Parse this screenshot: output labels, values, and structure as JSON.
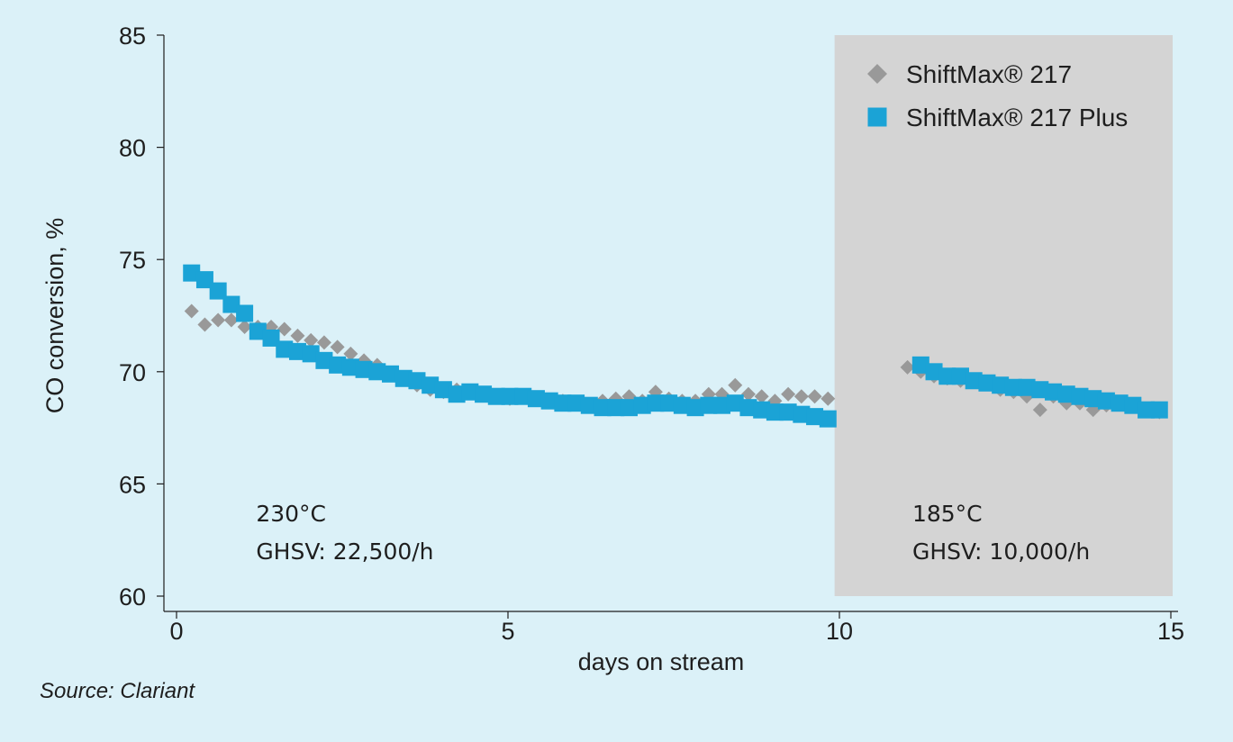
{
  "chart_data": {
    "type": "scatter",
    "title": "",
    "xlabel": "days on stream",
    "ylabel": "CO conversion, %",
    "xlim": [
      0,
      15
    ],
    "ylim": [
      60,
      85
    ],
    "xticks": [
      0,
      5,
      10,
      15
    ],
    "yticks": [
      60,
      65,
      70,
      75,
      80,
      85
    ],
    "grid": false,
    "legend_position": "top-right",
    "shaded_region": {
      "x_start": 9.9,
      "x_end": 15,
      "color": "#d4d4d4"
    },
    "annotations": [
      {
        "lines": [
          "230°C",
          "GHSV: 22,500/h"
        ],
        "x": 1.2,
        "y": 63.5
      },
      {
        "lines": [
          "185°C",
          "GHSV: 10,000/h"
        ],
        "x": 11.1,
        "y": 63.5
      }
    ],
    "series": [
      {
        "name": "ShiftMax® 217",
        "marker": "diamond",
        "color": "#999999",
        "x": [
          0.2,
          0.4,
          0.6,
          0.8,
          1.0,
          1.2,
          1.4,
          1.6,
          1.8,
          2.0,
          2.2,
          2.4,
          2.6,
          2.8,
          3.0,
          3.2,
          3.4,
          3.6,
          3.8,
          4.0,
          4.2,
          4.4,
          4.6,
          4.8,
          5.0,
          5.2,
          5.4,
          5.6,
          5.8,
          6.0,
          6.2,
          6.4,
          6.6,
          6.8,
          7.0,
          7.2,
          7.4,
          7.6,
          7.8,
          8.0,
          8.2,
          8.4,
          8.6,
          8.8,
          9.0,
          9.2,
          9.4,
          9.6,
          9.8,
          11.0,
          11.2,
          11.4,
          11.6,
          11.8,
          12.0,
          12.2,
          12.4,
          12.6,
          12.8,
          13.0,
          13.2,
          13.4,
          13.6,
          13.8,
          14.0,
          14.2,
          14.4,
          14.6,
          14.8
        ],
        "y": [
          72.7,
          72.1,
          72.3,
          72.3,
          72.0,
          72.0,
          72.0,
          71.9,
          71.6,
          71.4,
          71.3,
          71.1,
          70.8,
          70.5,
          70.3,
          69.9,
          69.7,
          69.4,
          69.2,
          69.1,
          69.2,
          69.1,
          69.0,
          68.9,
          68.8,
          68.9,
          68.8,
          68.7,
          68.7,
          68.6,
          68.5,
          68.7,
          68.8,
          68.9,
          68.7,
          69.1,
          68.8,
          68.7,
          68.7,
          69.0,
          69.0,
          69.4,
          69.0,
          68.9,
          68.7,
          69.0,
          68.9,
          68.9,
          68.8,
          70.2,
          70.0,
          69.8,
          69.7,
          69.6,
          69.6,
          69.5,
          69.2,
          69.1,
          68.9,
          68.3,
          68.9,
          68.6,
          68.6,
          68.3,
          68.5,
          68.6,
          68.5,
          68.3,
          68.2
        ]
      },
      {
        "name": "ShiftMax® 217 Plus",
        "marker": "square",
        "color": "#1ba3d6",
        "x": [
          0.2,
          0.4,
          0.6,
          0.8,
          1.0,
          1.2,
          1.4,
          1.6,
          1.8,
          2.0,
          2.2,
          2.4,
          2.6,
          2.8,
          3.0,
          3.2,
          3.4,
          3.6,
          3.8,
          4.0,
          4.2,
          4.4,
          4.6,
          4.8,
          5.0,
          5.2,
          5.4,
          5.6,
          5.8,
          6.0,
          6.2,
          6.4,
          6.6,
          6.8,
          7.0,
          7.2,
          7.4,
          7.6,
          7.8,
          8.0,
          8.2,
          8.4,
          8.6,
          8.8,
          9.0,
          9.2,
          9.4,
          9.6,
          9.8,
          11.2,
          11.4,
          11.6,
          11.8,
          12.0,
          12.2,
          12.4,
          12.6,
          12.8,
          13.0,
          13.2,
          13.4,
          13.6,
          13.8,
          14.0,
          14.2,
          14.4,
          14.6,
          14.8
        ],
        "y": [
          74.4,
          74.1,
          73.6,
          73.0,
          72.6,
          71.8,
          71.5,
          71.0,
          70.9,
          70.8,
          70.5,
          70.3,
          70.2,
          70.1,
          70.0,
          69.9,
          69.7,
          69.6,
          69.4,
          69.2,
          69.0,
          69.1,
          69.0,
          68.9,
          68.9,
          68.9,
          68.8,
          68.7,
          68.6,
          68.6,
          68.5,
          68.4,
          68.4,
          68.4,
          68.5,
          68.6,
          68.6,
          68.5,
          68.4,
          68.5,
          68.5,
          68.6,
          68.4,
          68.3,
          68.2,
          68.2,
          68.1,
          68.0,
          67.9,
          70.3,
          70.0,
          69.8,
          69.8,
          69.6,
          69.5,
          69.4,
          69.3,
          69.3,
          69.2,
          69.1,
          69.0,
          68.9,
          68.8,
          68.7,
          68.6,
          68.5,
          68.3,
          68.3
        ]
      }
    ]
  },
  "source_text": "Source: Clariant",
  "colors": {
    "background": "#dbf1f8",
    "shade": "#d4d4d4",
    "axis": "#1e1e1e"
  }
}
